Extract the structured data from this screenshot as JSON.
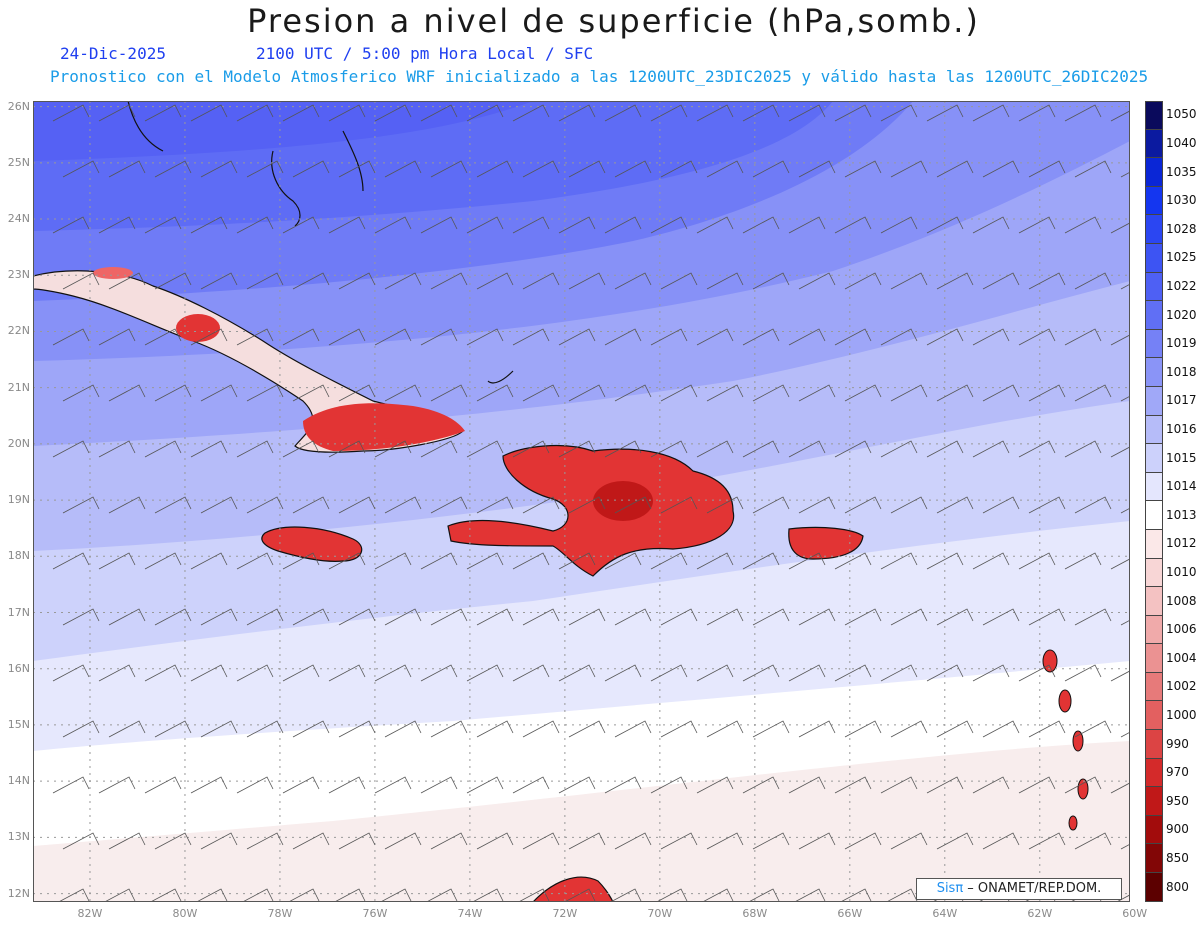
{
  "header": {
    "title": "Presion a nivel de superficie (hPa,somb.)",
    "date": "24-Dic-2025",
    "time": "2100 UTC / 5:00 pm Hora Local / SFC",
    "forecast": "Pronostico con el Modelo Atmosferico WRF inicializado a las 1200UTC_23DIC2025 y válido hasta las  1200UTC_26DIC2025"
  },
  "axes": {
    "lat_labels": [
      "26N",
      "25N",
      "24N",
      "23N",
      "22N",
      "21N",
      "20N",
      "19N",
      "18N",
      "17N",
      "16N",
      "15N",
      "14N",
      "13N",
      "12N"
    ],
    "lon_labels": [
      "82W",
      "80W",
      "78W",
      "76W",
      "74W",
      "72W",
      "70W",
      "68W",
      "66W",
      "64W",
      "62W",
      "60W"
    ]
  },
  "colorbar": {
    "labels": [
      "1050",
      "1040",
      "1035",
      "1030",
      "1028",
      "1025",
      "1022",
      "1020",
      "1019",
      "1018",
      "1017",
      "1016",
      "1015",
      "1014",
      "1013",
      "1012",
      "1010",
      "1008",
      "1006",
      "1004",
      "1002",
      "1000",
      "990",
      "970",
      "950",
      "900",
      "850",
      "800"
    ],
    "colors": [
      "#0a0a5c",
      "#0b1aa0",
      "#0a26d6",
      "#1436f0",
      "#2b46f2",
      "#3d54f3",
      "#4e60f4",
      "#606ff5",
      "#7581f6",
      "#8a94f7",
      "#a0a8f8",
      "#b6bcf9",
      "#ccd1fb",
      "#e4e6fd",
      "#ffffff",
      "#fbe8e8",
      "#f8d6d6",
      "#f4c2c2",
      "#f0aaaa",
      "#eb9292",
      "#e77a7a",
      "#e36060",
      "#dc4444",
      "#d42a2a",
      "#c01818",
      "#a20c0c",
      "#820606",
      "#5c0000"
    ]
  },
  "credit": {
    "brand": "Sisπ",
    "text": " – ONAMET/REP.DOM."
  }
}
